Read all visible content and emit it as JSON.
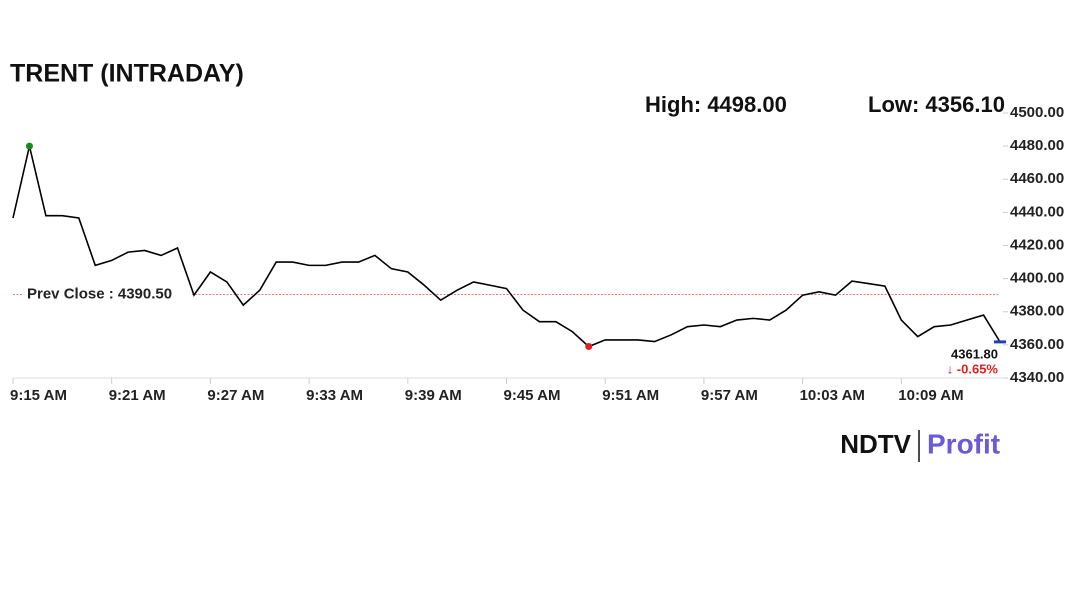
{
  "chart_data": {
    "type": "line",
    "title": "TRENT (INTRADAY)",
    "high_label": "High: 4498.00",
    "low_label": "Low: 4356.10",
    "x": [
      "9:15 AM",
      "9:16 AM",
      "9:17 AM",
      "9:18 AM",
      "9:19 AM",
      "9:20 AM",
      "9:21 AM",
      "9:22 AM",
      "9:23 AM",
      "9:24 AM",
      "9:25 AM",
      "9:26 AM",
      "9:27 AM",
      "9:28 AM",
      "9:29 AM",
      "9:30 AM",
      "9:31 AM",
      "9:32 AM",
      "9:33 AM",
      "9:34 AM",
      "9:35 AM",
      "9:36 AM",
      "9:37 AM",
      "9:38 AM",
      "9:39 AM",
      "9:40 AM",
      "9:41 AM",
      "9:42 AM",
      "9:43 AM",
      "9:44 AM",
      "9:45 AM",
      "9:46 AM",
      "9:47 AM",
      "9:48 AM",
      "9:49 AM",
      "9:50 AM",
      "9:51 AM",
      "9:52 AM",
      "9:53 AM",
      "9:54 AM",
      "9:55 AM",
      "9:56 AM",
      "9:57 AM",
      "9:58 AM",
      "9:59 AM",
      "10:00 AM",
      "10:01 AM",
      "10:02 AM",
      "10:03 AM",
      "10:04 AM",
      "10:05 AM",
      "10:06 AM",
      "10:07 AM",
      "10:08 AM",
      "10:09 AM",
      "10:10 AM",
      "10:11 AM",
      "10:12 AM",
      "10:13 AM",
      "10:14 AM",
      "10:15 AM"
    ],
    "series": [
      {
        "name": "TRENT",
        "color": "#000000",
        "values": [
          4436.6,
          4480,
          4438,
          4438,
          4436.6,
          4408,
          4411,
          4416,
          4417,
          4414,
          4418.5,
          4390,
          4404,
          4398,
          4384,
          4393,
          4410,
          4410,
          4408,
          4408,
          4410,
          4410,
          4414,
          4406,
          4404,
          4396,
          4387,
          4393,
          4398,
          4396,
          4394,
          4381,
          4374,
          4374,
          4368,
          4359,
          4363,
          4363,
          4363,
          4362,
          4366,
          4371,
          4372,
          4371,
          4375,
          4376,
          4375,
          4381,
          4390,
          4392,
          4390,
          4398.5,
          4397,
          4395.5,
          4375,
          4365,
          4371,
          4372,
          4375,
          4378,
          4361.8
        ]
      }
    ],
    "last_value_label": "4361.80",
    "change_label": "↓ -0.65%",
    "prev_close": 4390.5,
    "prev_close_label": "Prev Close : 4390.50",
    "high_color": "#1a8a1a",
    "low_color": "#e02020",
    "last_color": "#1f3fbf",
    "prev_close_color": "#e05050",
    "xticks": [
      "9:15 AM",
      "9:21 AM",
      "9:27 AM",
      "9:33 AM",
      "9:39 AM",
      "9:45 AM",
      "9:51 AM",
      "9:57 AM",
      "10:03 AM",
      "10:09 AM"
    ],
    "xlim": [
      "9:15 AM",
      "10:15 AM"
    ],
    "ylim": [
      4340,
      4500
    ],
    "yticks": [
      {
        "value": 4340,
        "label": "4340.00"
      },
      {
        "value": 4360,
        "label": "4360.00"
      },
      {
        "value": 4380,
        "label": "4380.00"
      },
      {
        "value": 4400,
        "label": "4400.00"
      },
      {
        "value": 4420,
        "label": "4420.00"
      },
      {
        "value": 4440,
        "label": "4440.00"
      },
      {
        "value": 4460,
        "label": "4460.00"
      },
      {
        "value": 4480,
        "label": "4480.00"
      },
      {
        "value": 4500,
        "label": "4500.00"
      }
    ],
    "grid": false,
    "brand": {
      "left": "NDTV",
      "right": "Profit"
    }
  }
}
